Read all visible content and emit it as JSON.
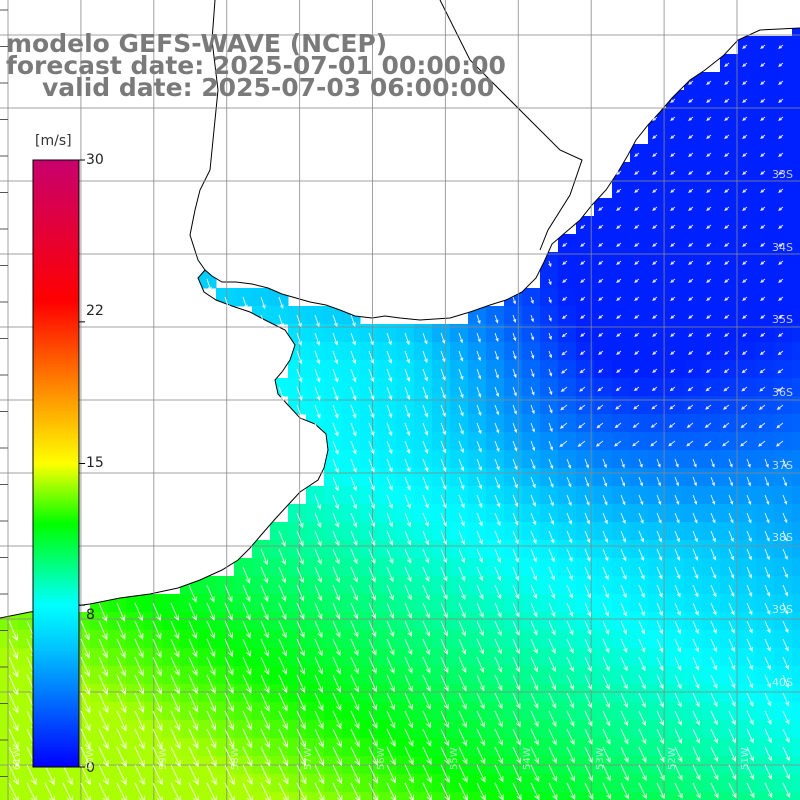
{
  "header": {
    "line1": "modelo GEFS-WAVE (NCEP)",
    "line2": "forecast date: 2025-07-01 00:00:00",
    "line3": "valid date: 2025-07-03 06:00:00"
  },
  "colorbar": {
    "unit": "[m/s]",
    "ticks": [
      "30",
      "22",
      "15",
      "8",
      "0"
    ],
    "tick_values": [
      30,
      22,
      15,
      8,
      0
    ],
    "range": [
      0,
      30
    ],
    "stops": [
      "#0000ff",
      "#00c8ff",
      "#00ffff",
      "#00ff00",
      "#ffff00",
      "#ff8000",
      "#ff0000",
      "#c8006e"
    ]
  },
  "map": {
    "land_color": "#ffffff",
    "grid_color": "#888888",
    "lat_labels": [
      "33S",
      "34S",
      "35S",
      "36S",
      "37S",
      "38S",
      "39S",
      "40S"
    ],
    "lon_labels": [
      "61W",
      "60W",
      "59W",
      "58W",
      "57W",
      "56W",
      "55W",
      "54W",
      "53W",
      "52W",
      "51W"
    ],
    "field": "wind speed with direction arrows"
  }
}
